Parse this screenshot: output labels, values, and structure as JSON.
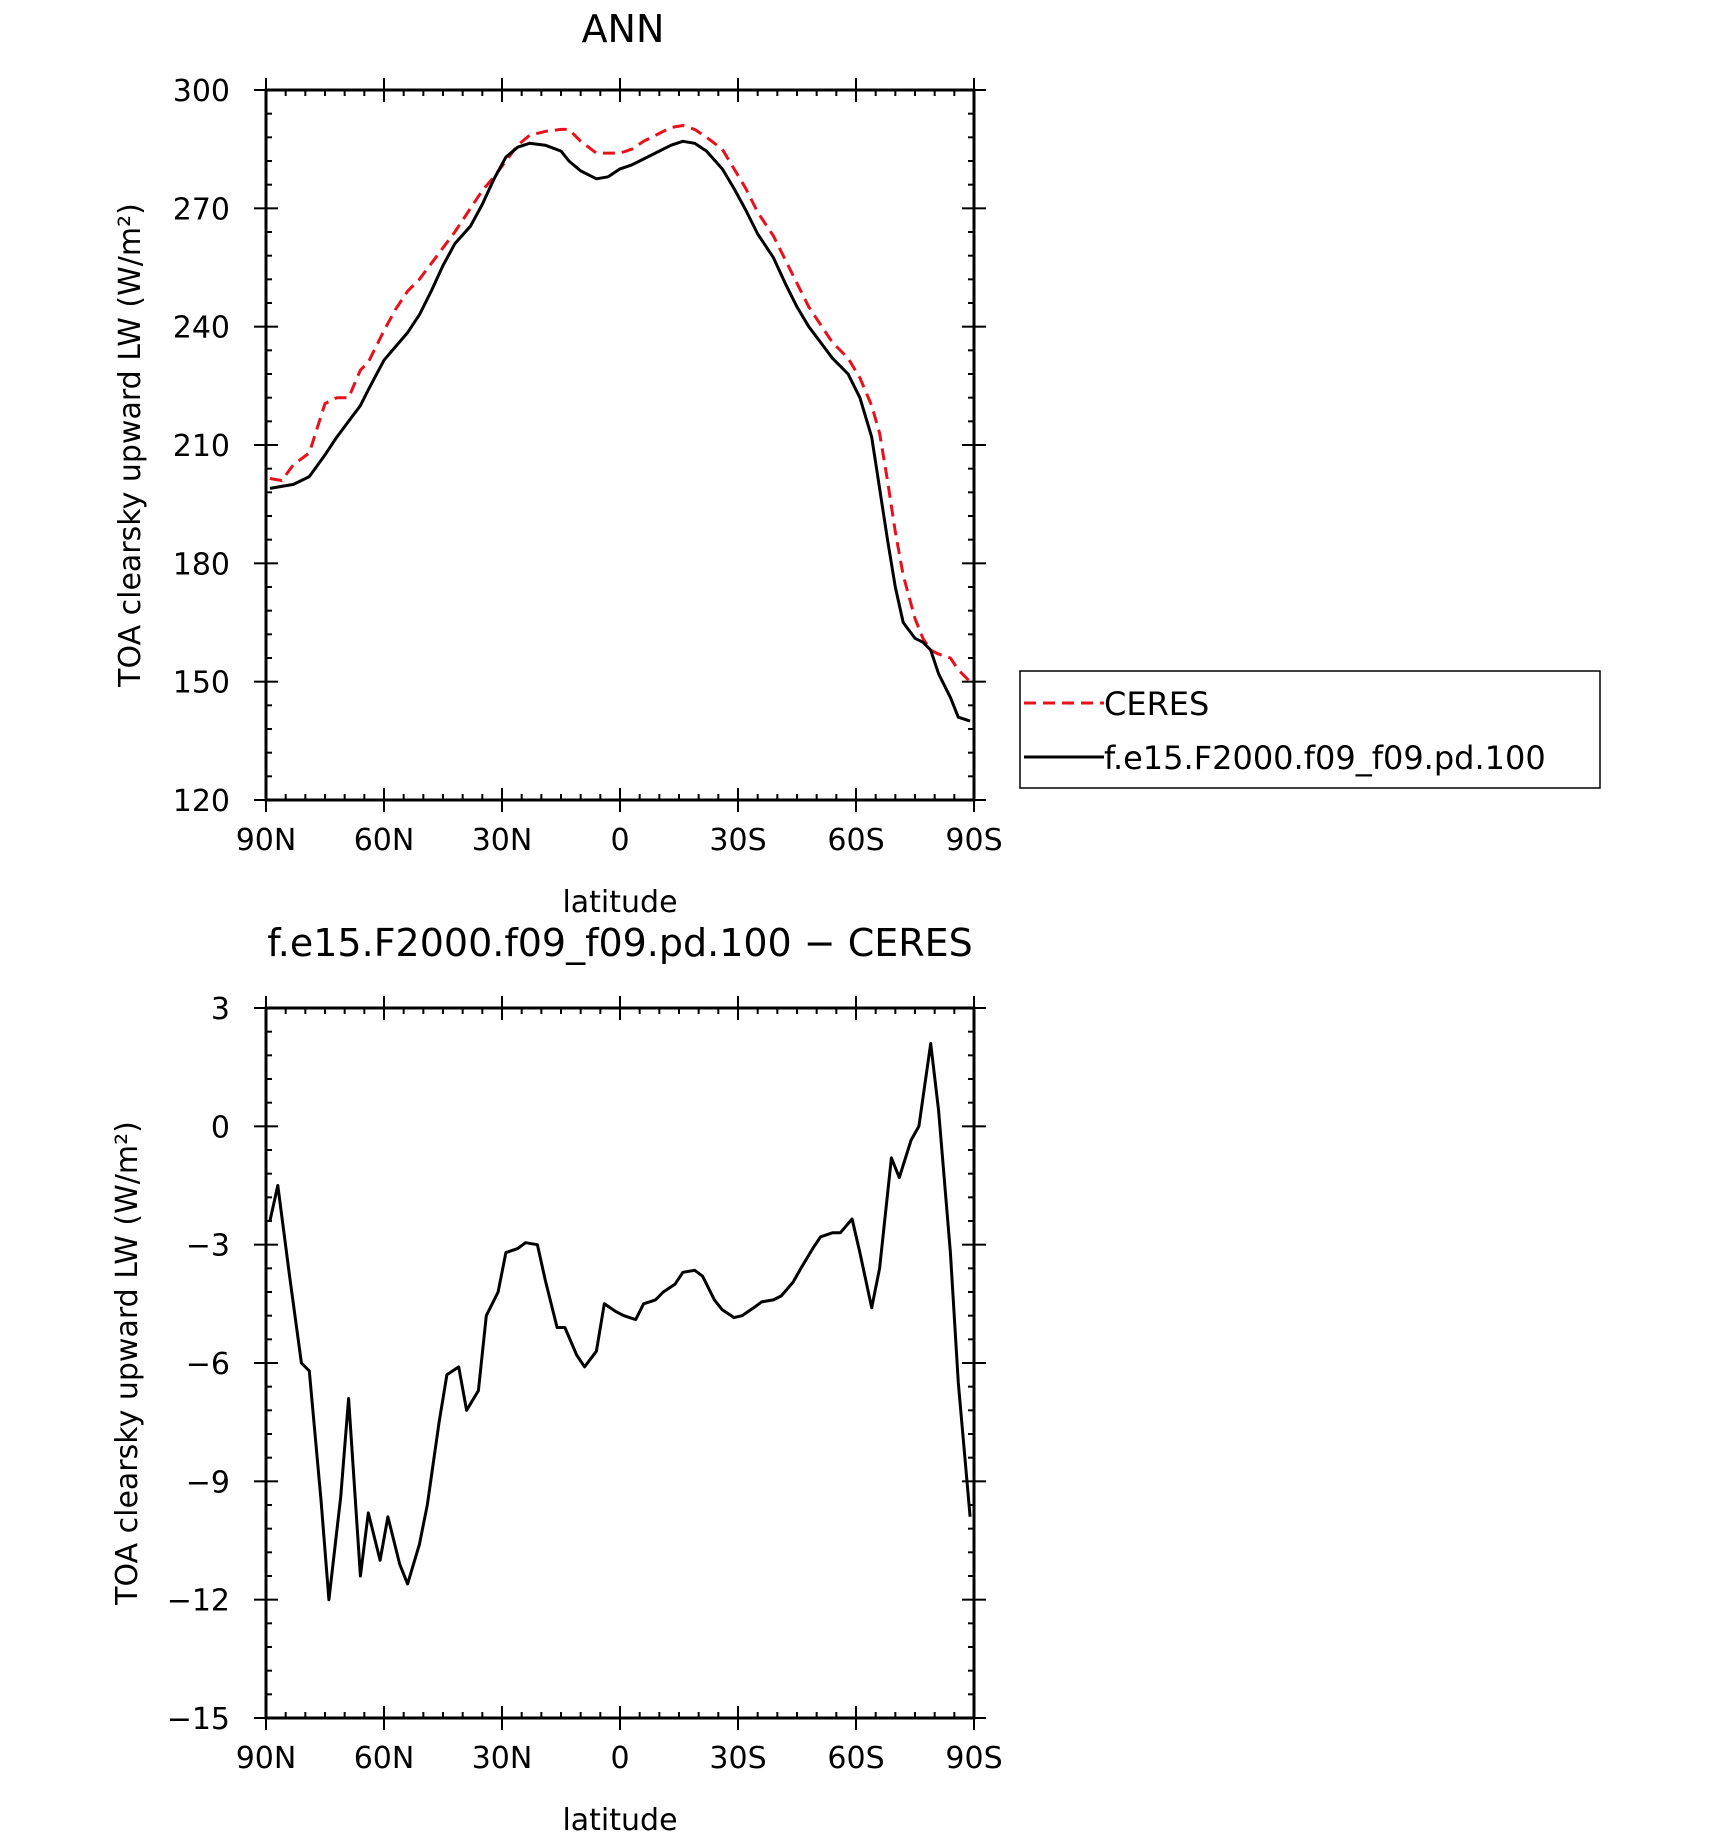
{
  "chart_data": [
    {
      "type": "line",
      "title": "ANN",
      "xlabel": "latitude",
      "ylabel": "TOA clearsky upward LW (W/m²)",
      "xlim": [
        90,
        -90
      ],
      "ylim": [
        120,
        300
      ],
      "x_ticks": [
        90,
        60,
        30,
        0,
        -30,
        -60,
        -90
      ],
      "x_tick_labels": [
        "90N",
        "60N",
        "30N",
        "0",
        "30S",
        "60S",
        "90S"
      ],
      "y_ticks": [
        120,
        150,
        180,
        210,
        240,
        270,
        300
      ],
      "y_tick_labels": [
        "120",
        "150",
        "180",
        "210",
        "240",
        "270",
        "300"
      ],
      "grid": false,
      "legend": {
        "placement": "right",
        "entries": [
          {
            "name": "CERES",
            "color": "#e8111b",
            "dash": "dashed"
          },
          {
            "name": "f.e15.F2000.f09_f09.pd.100",
            "color": "#000000",
            "dash": "solid"
          }
        ]
      },
      "series": [
        {
          "name": "CERES",
          "color": "#e8111b",
          "dash": "dashed",
          "x": [
            89,
            86,
            83,
            79,
            75,
            72,
            69,
            66,
            64,
            60,
            57,
            54,
            51,
            48,
            45,
            42,
            38,
            35,
            32,
            29,
            26,
            23,
            19,
            15,
            13,
            10,
            6,
            3,
            0,
            -3,
            -6,
            -10,
            -13,
            -16,
            -19,
            -22,
            -26,
            -29,
            -32,
            -35,
            -39,
            -42,
            -45,
            -48,
            -51,
            -54,
            -58,
            -61,
            -64,
            -66,
            -68,
            -70,
            -72,
            -75,
            -77,
            -79,
            -81,
            -84,
            -86,
            -89
          ],
          "values": [
            201.5,
            201,
            205,
            208,
            220.5,
            222,
            222,
            229,
            231,
            239,
            244.5,
            249,
            252,
            256,
            260,
            264,
            270,
            274.5,
            278,
            282,
            286,
            288.5,
            289.5,
            290,
            290,
            287,
            284,
            284,
            284,
            285,
            287,
            289,
            290.5,
            291,
            290,
            288,
            285,
            280,
            275,
            269,
            263,
            257,
            251,
            245,
            240.5,
            236,
            232,
            227,
            220,
            213,
            201,
            188,
            177,
            166,
            161,
            158,
            157,
            156,
            153,
            150
          ]
        },
        {
          "name": "f.e15.F2000.f09_f09.pd.100",
          "color": "#000000",
          "dash": "solid",
          "x": [
            89,
            86,
            83,
            79,
            75,
            72,
            69,
            66,
            64,
            60,
            57,
            54,
            51,
            48,
            45,
            42,
            38,
            35,
            32,
            29,
            26,
            23,
            19,
            15,
            13,
            10,
            6,
            3,
            0,
            -3,
            -6,
            -10,
            -13,
            -16,
            -19,
            -22,
            -26,
            -29,
            -32,
            -35,
            -39,
            -42,
            -45,
            -48,
            -51,
            -54,
            -58,
            -61,
            -64,
            -66,
            -68,
            -70,
            -72,
            -75,
            -77,
            -79,
            -81,
            -84,
            -86,
            -89
          ],
          "values": [
            199,
            199.5,
            200,
            202,
            207.5,
            212,
            216,
            220,
            224,
            231.5,
            235,
            238.5,
            243,
            249,
            255.5,
            261,
            265.5,
            271,
            277.5,
            283,
            285.5,
            286.5,
            286,
            284.5,
            282,
            279.5,
            277.5,
            278,
            280,
            281,
            282.5,
            284.5,
            286,
            287,
            286.5,
            284.5,
            280,
            275,
            269.5,
            263.5,
            257.5,
            251,
            245,
            240,
            236,
            232,
            228,
            222,
            212,
            199,
            186,
            174,
            165,
            161,
            160,
            158,
            152,
            146,
            141,
            140
          ]
        }
      ]
    },
    {
      "type": "line",
      "title": "f.e15.F2000.f09_f09.pd.100 − CERES",
      "xlabel": "latitude",
      "ylabel": "TOA clearsky upward LW (W/m²)",
      "xlim": [
        90,
        -90
      ],
      "ylim": [
        -15,
        3
      ],
      "x_ticks": [
        90,
        60,
        30,
        0,
        -30,
        -60,
        -90
      ],
      "x_tick_labels": [
        "90N",
        "60N",
        "30N",
        "0",
        "30S",
        "60S",
        "90S"
      ],
      "y_ticks": [
        -15,
        -12,
        -9,
        -6,
        -3,
        0,
        3
      ],
      "y_tick_labels": [
        "−15",
        "−12",
        "−9",
        "−6",
        "−3",
        "0",
        "3"
      ],
      "grid": false,
      "series": [
        {
          "name": "",
          "color": "#000000",
          "dash": "solid",
          "x": [
            89,
            87,
            84,
            81,
            79,
            76,
            74,
            71,
            69,
            66,
            64,
            61,
            59,
            56,
            54,
            51,
            49,
            46,
            44,
            41,
            39,
            36,
            34,
            31,
            29,
            26,
            24,
            21,
            19,
            16,
            14,
            11,
            9,
            6,
            4,
            1,
            -1,
            -4,
            -6,
            -9,
            -11,
            -14,
            -16,
            -19,
            -21,
            -24,
            -26,
            -29,
            -31,
            -34,
            -36,
            -39,
            -41,
            -44,
            -46,
            -49,
            -51,
            -54,
            -56,
            -59,
            -61,
            -64,
            -66,
            -69,
            -71,
            -74,
            -76,
            -79,
            -81,
            -84,
            -86,
            -89
          ],
          "values": [
            -2.4,
            -1.5,
            -3.8,
            -6.0,
            -6.2,
            -9.5,
            -12.0,
            -9.4,
            -6.9,
            -11.4,
            -9.8,
            -11.0,
            -9.9,
            -11.1,
            -11.6,
            -10.6,
            -9.6,
            -7.5,
            -6.3,
            -6.1,
            -7.2,
            -6.7,
            -4.8,
            -4.2,
            -3.2,
            -3.1,
            -2.95,
            -3.0,
            -3.9,
            -5.1,
            -5.1,
            -5.8,
            -6.1,
            -5.7,
            -4.5,
            -4.7,
            -4.8,
            -4.9,
            -4.5,
            -4.4,
            -4.2,
            -4.0,
            -3.7,
            -3.65,
            -3.8,
            -4.4,
            -4.65,
            -4.85,
            -4.8,
            -4.6,
            -4.45,
            -4.4,
            -4.3,
            -3.95,
            -3.6,
            -3.1,
            -2.8,
            -2.7,
            -2.7,
            -2.35,
            -3.2,
            -4.6,
            -3.6,
            -0.8,
            -1.3,
            -0.35,
            0.0,
            2.1,
            0.4,
            -3.2,
            -6.5,
            -9.9
          ]
        }
      ]
    }
  ]
}
